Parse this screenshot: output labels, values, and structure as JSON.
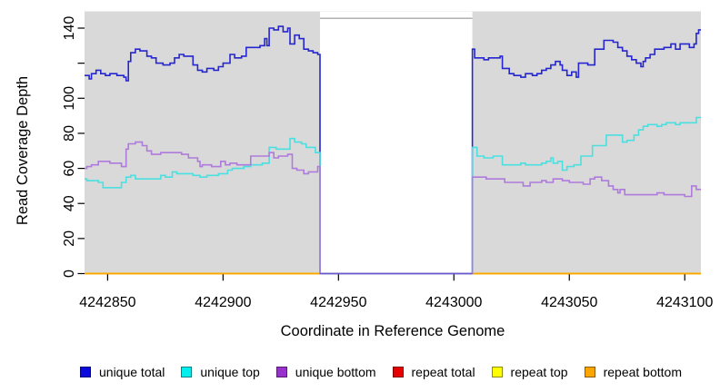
{
  "figure": {
    "kind": "R-style read coverage depth plot",
    "background": "#ffffff"
  },
  "chart_data": {
    "type": "line",
    "step_interpolation": true,
    "title": "",
    "xlabel": "Coordinate in Reference Genome",
    "ylabel": "Read Coverage Depth",
    "xlim": [
      4242840,
      4243107
    ],
    "ylim": [
      0,
      150
    ],
    "grid": false,
    "plot_bg": "#d9d9d9",
    "axis_color": "#000000",
    "x_ticks": {
      "values": [
        4242850,
        4242900,
        4242950,
        4243000,
        4243050,
        4243100
      ],
      "labels": [
        "4242850",
        "4242900",
        "4242950",
        "4243000",
        "4243050",
        "4243100"
      ]
    },
    "y_ticks": {
      "values": [
        0,
        20,
        40,
        60,
        80,
        100,
        120,
        140
      ],
      "labels": [
        "0",
        "20",
        "40",
        "60",
        "80",
        "100",
        "",
        "140"
      ]
    },
    "gap_region": {
      "x_start": 4242942,
      "x_end": 4243008,
      "fill": "#ffffff",
      "top_border_color": "#a9a9a9",
      "floor_line_color": "#6a5acd",
      "note": "coverage drops to 0 in this masked window"
    },
    "series": [
      {
        "name": "repeat total",
        "color": "#e00000",
        "legend_color": "#e60000",
        "layer": "below_gap",
        "points": [
          [
            4242840,
            0
          ]
        ]
      },
      {
        "name": "repeat top",
        "color": "#ffff00",
        "legend_color": "#ffff00",
        "layer": "below_gap",
        "points": [
          [
            4242840,
            0
          ]
        ]
      },
      {
        "name": "repeat bottom",
        "color": "#ffa500",
        "legend_color": "#ffa500",
        "layer": "below_gap",
        "points": [
          [
            4242840,
            0
          ]
        ]
      },
      {
        "name": "unique total",
        "color": "#2626ce",
        "legend_color": "#0a0adc",
        "layer": "above_gap",
        "points": [
          [
            4242840,
            113
          ],
          [
            4242842,
            111
          ],
          [
            4242843,
            114
          ],
          [
            4242845,
            116
          ],
          [
            4242847,
            114
          ],
          [
            4242849,
            113
          ],
          [
            4242851,
            114
          ],
          [
            4242854,
            113
          ],
          [
            4242857,
            112
          ],
          [
            4242858,
            110
          ],
          [
            4242859,
            121
          ],
          [
            4242860,
            126
          ],
          [
            4242862,
            128
          ],
          [
            4242864,
            127
          ],
          [
            4242867,
            124
          ],
          [
            4242869,
            123
          ],
          [
            4242871,
            120
          ],
          [
            4242874,
            119
          ],
          [
            4242877,
            120
          ],
          [
            4242879,
            123
          ],
          [
            4242881,
            125
          ],
          [
            4242883,
            124
          ],
          [
            4242887,
            119
          ],
          [
            4242889,
            116
          ],
          [
            4242891,
            115
          ],
          [
            4242893,
            117
          ],
          [
            4242896,
            116
          ],
          [
            4242898,
            118
          ],
          [
            4242900,
            120
          ],
          [
            4242903,
            125
          ],
          [
            4242905,
            123
          ],
          [
            4242908,
            124
          ],
          [
            4242910,
            129
          ],
          [
            4242916,
            130
          ],
          [
            4242918,
            134
          ],
          [
            4242919,
            130
          ],
          [
            4242920,
            140
          ],
          [
            4242922,
            139
          ],
          [
            4242924,
            141
          ],
          [
            4242926,
            138
          ],
          [
            4242928,
            140
          ],
          [
            4242929,
            131
          ],
          [
            4242931,
            136
          ],
          [
            4242933,
            134
          ],
          [
            4242935,
            128
          ],
          [
            4242937,
            127
          ],
          [
            4242939,
            126
          ],
          [
            4242941,
            125
          ],
          [
            4242942,
            0
          ],
          [
            4243008,
            128
          ],
          [
            4243009,
            123
          ],
          [
            4243013,
            122
          ],
          [
            4243015,
            123
          ],
          [
            4243020,
            124
          ],
          [
            4243021,
            117
          ],
          [
            4243024,
            114
          ],
          [
            4243026,
            113
          ],
          [
            4243029,
            112
          ],
          [
            4243031,
            114
          ],
          [
            4243034,
            113
          ],
          [
            4243036,
            114
          ],
          [
            4243038,
            116
          ],
          [
            4243040,
            117
          ],
          [
            4243042,
            119
          ],
          [
            4243044,
            121
          ],
          [
            4243046,
            119
          ],
          [
            4243047,
            116
          ],
          [
            4243049,
            113
          ],
          [
            4243051,
            115
          ],
          [
            4243053,
            112
          ],
          [
            4243054,
            120
          ],
          [
            4243058,
            119
          ],
          [
            4243061,
            128
          ],
          [
            4243065,
            133
          ],
          [
            4243069,
            132
          ],
          [
            4243071,
            129
          ],
          [
            4243073,
            127
          ],
          [
            4243075,
            124
          ],
          [
            4243077,
            122
          ],
          [
            4243079,
            120
          ],
          [
            4243081,
            118
          ],
          [
            4243082,
            121
          ],
          [
            4243083,
            123
          ],
          [
            4243085,
            125
          ],
          [
            4243087,
            128
          ],
          [
            4243091,
            129
          ],
          [
            4243094,
            131
          ],
          [
            4243096,
            128
          ],
          [
            4243098,
            131
          ],
          [
            4243102,
            129
          ],
          [
            4243104,
            131
          ],
          [
            4243105,
            137
          ],
          [
            4243106,
            139
          ]
        ]
      },
      {
        "name": "unique top",
        "color": "#4adfe0",
        "legend_color": "#00eeee",
        "layer": "above_gap",
        "points": [
          [
            4242840,
            54
          ],
          [
            4242841,
            53
          ],
          [
            4242846,
            52
          ],
          [
            4242848,
            49
          ],
          [
            4242856,
            52
          ],
          [
            4242858,
            55
          ],
          [
            4242860,
            56
          ],
          [
            4242862,
            54
          ],
          [
            4242873,
            56
          ],
          [
            4242875,
            55
          ],
          [
            4242878,
            58
          ],
          [
            4242880,
            57
          ],
          [
            4242887,
            56
          ],
          [
            4242890,
            55
          ],
          [
            4242893,
            56
          ],
          [
            4242898,
            57
          ],
          [
            4242902,
            59
          ],
          [
            4242904,
            60
          ],
          [
            4242909,
            61
          ],
          [
            4242912,
            62
          ],
          [
            4242917,
            63
          ],
          [
            4242920,
            72
          ],
          [
            4242923,
            71
          ],
          [
            4242929,
            77
          ],
          [
            4242931,
            75
          ],
          [
            4242934,
            74
          ],
          [
            4242936,
            72
          ],
          [
            4242940,
            69
          ],
          [
            4242942,
            0
          ],
          [
            4243008,
            72
          ],
          [
            4243010,
            67
          ],
          [
            4243013,
            66
          ],
          [
            4243017,
            67
          ],
          [
            4243021,
            62
          ],
          [
            4243029,
            63
          ],
          [
            4243031,
            62
          ],
          [
            4243038,
            63
          ],
          [
            4243040,
            64
          ],
          [
            4243042,
            66
          ],
          [
            4243043,
            63
          ],
          [
            4243045,
            64
          ],
          [
            4243047,
            59
          ],
          [
            4243049,
            61
          ],
          [
            4243052,
            62
          ],
          [
            4243055,
            67
          ],
          [
            4243060,
            73
          ],
          [
            4243066,
            79
          ],
          [
            4243073,
            75
          ],
          [
            4243075,
            76
          ],
          [
            4243078,
            79
          ],
          [
            4243080,
            82
          ],
          [
            4243082,
            84
          ],
          [
            4243084,
            85
          ],
          [
            4243088,
            84
          ],
          [
            4243090,
            85
          ],
          [
            4243092,
            86
          ],
          [
            4243096,
            85
          ],
          [
            4243098,
            86
          ],
          [
            4243105,
            89
          ]
        ]
      },
      {
        "name": "unique bottom",
        "color": "#ae7bdc",
        "legend_color": "#9932cc",
        "layer": "above_gap",
        "points": [
          [
            4242840,
            60
          ],
          [
            4242841,
            61
          ],
          [
            4242843,
            62
          ],
          [
            4242846,
            64
          ],
          [
            4242851,
            63
          ],
          [
            4242856,
            61
          ],
          [
            4242858,
            71
          ],
          [
            4242859,
            74
          ],
          [
            4242862,
            75
          ],
          [
            4242865,
            73
          ],
          [
            4242867,
            70
          ],
          [
            4242869,
            68
          ],
          [
            4242873,
            69
          ],
          [
            4242882,
            68
          ],
          [
            4242885,
            66
          ],
          [
            4242889,
            64
          ],
          [
            4242890,
            61
          ],
          [
            4242891,
            62
          ],
          [
            4242895,
            61
          ],
          [
            4242899,
            64
          ],
          [
            4242901,
            62
          ],
          [
            4242903,
            63
          ],
          [
            4242906,
            62
          ],
          [
            4242912,
            67
          ],
          [
            4242920,
            69
          ],
          [
            4242922,
            66
          ],
          [
            4242924,
            67
          ],
          [
            4242928,
            68
          ],
          [
            4242930,
            60
          ],
          [
            4242932,
            59
          ],
          [
            4242935,
            57
          ],
          [
            4242937,
            58
          ],
          [
            4242941,
            61
          ],
          [
            4242942,
            0
          ],
          [
            4243008,
            55
          ],
          [
            4243014,
            54
          ],
          [
            4243022,
            52
          ],
          [
            4243030,
            50
          ],
          [
            4243033,
            52
          ],
          [
            4243038,
            53
          ],
          [
            4243040,
            52
          ],
          [
            4243043,
            54
          ],
          [
            4243047,
            53
          ],
          [
            4243050,
            52
          ],
          [
            4243056,
            51
          ],
          [
            4243059,
            54
          ],
          [
            4243061,
            55
          ],
          [
            4243064,
            53
          ],
          [
            4243067,
            50
          ],
          [
            4243069,
            48
          ],
          [
            4243071,
            46
          ],
          [
            4243072,
            48
          ],
          [
            4243074,
            45
          ],
          [
            4243088,
            46
          ],
          [
            4243091,
            45
          ],
          [
            4243100,
            44
          ],
          [
            4243103,
            50
          ],
          [
            4243105,
            48
          ]
        ]
      }
    ],
    "legend": {
      "position": "bottom",
      "entries": [
        "unique total",
        "unique top",
        "unique bottom",
        "repeat total",
        "repeat top",
        "repeat bottom"
      ]
    }
  }
}
